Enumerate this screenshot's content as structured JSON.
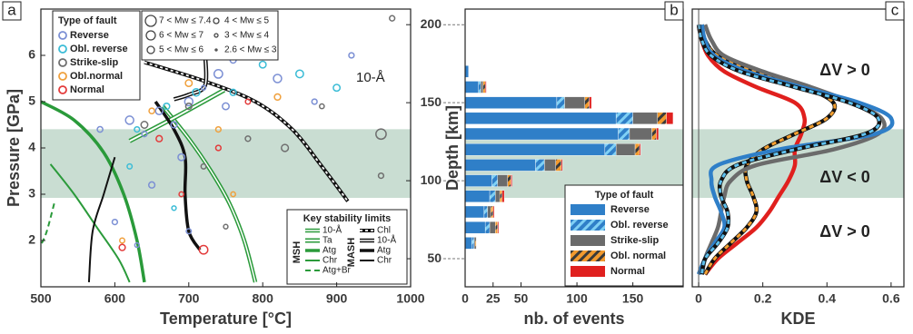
{
  "chart_data": [
    {
      "type": "scatter",
      "label": "a",
      "xlabel": "Temperature [°C]",
      "ylabel": "Pressure [GPa]",
      "y2label": "Depth [km]",
      "xlim": [
        500,
        1000
      ],
      "ylim": [
        1,
        7
      ],
      "y2lim": [
        32,
        210
      ],
      "xticks": [
        500,
        600,
        700,
        800,
        900,
        1000
      ],
      "yticks": [
        2,
        3,
        4,
        5,
        6
      ],
      "y2ticks": [
        50,
        100,
        150,
        200
      ],
      "shade": [
        89,
        133
      ],
      "legend_title": "Type of fault",
      "series": [
        {
          "name": "Reverse",
          "color": "#7b8fd4",
          "x": [
            620,
            640,
            660,
            680,
            700,
            720,
            740,
            600,
            650,
            690,
            760,
            820,
            870,
            920,
            580,
            700,
            630,
            750
          ],
          "values": [
            4.6,
            4.3,
            4.8,
            4.5,
            5.0,
            5.3,
            5.6,
            2.4,
            3.2,
            3.8,
            5.9,
            5.5,
            5.0,
            6.0,
            4.4,
            2.2,
            1.9,
            4.9
          ],
          "mw": [
            4.5,
            3.5,
            4.2,
            3.8,
            4.5,
            3.2,
            4.6,
            3.5,
            3.8,
            4.0,
            3.8,
            4.5,
            3.5,
            3.5,
            3.6,
            3.4,
            3.2,
            4.0
          ]
        },
        {
          "name": "Obl. reverse",
          "color": "#3bbcd6",
          "x": [
            630,
            670,
            710,
            760,
            800,
            850,
            620,
            680,
            900
          ],
          "values": [
            4.4,
            4.9,
            5.2,
            5.2,
            5.8,
            5.6,
            3.6,
            2.7,
            5.3
          ],
          "mw": [
            3.5,
            3.8,
            4.2,
            3.8,
            4.0,
            4.3,
            3.4,
            3.2,
            4.0
          ]
        },
        {
          "name": "Strike-slip",
          "color": "#6f6f6f",
          "x": [
            640,
            700,
            780,
            830,
            880,
            960,
            975,
            960,
            720,
            750
          ],
          "values": [
            4.5,
            4.9,
            4.2,
            4.0,
            4.9,
            3.4,
            6.8,
            4.3,
            3.6,
            2.3
          ],
          "mw": [
            4.0,
            3.8,
            3.5,
            4.1,
            3.3,
            3.5,
            3.5,
            5.2,
            3.4,
            3.2
          ]
        },
        {
          "name": "Obl.normal",
          "color": "#f0a03c",
          "x": [
            650,
            700,
            740,
            820,
            610,
            760
          ],
          "values": [
            4.8,
            5.4,
            4.4,
            5.1,
            2.0,
            3.0
          ],
          "mw": [
            3.6,
            4.0,
            3.5,
            3.8,
            3.4,
            3.3
          ]
        },
        {
          "name": "Normal",
          "color": "#e33b3b",
          "x": [
            660,
            720,
            610,
            690,
            740,
            780
          ],
          "values": [
            4.2,
            1.8,
            1.85,
            3.0,
            4.0,
            5.0
          ],
          "mw": [
            3.8,
            4.6,
            3.8,
            3.3,
            3.5,
            3.4
          ]
        }
      ],
      "magnitude_legend": [
        "7 < Mw ≤ 7.4",
        "6 < Mw ≤ 7",
        "5 < Mw ≤ 6",
        "4 < Mw ≤ 5",
        "3 < Mw ≤ 4",
        "2.6 < Mw ≤ 3"
      ],
      "key": {
        "title": "Key stability limits",
        "groups": [
          {
            "name": "MSH",
            "color": "#2a9a3a",
            "items": [
              {
                "label": "10-Å",
                "style": "double"
              },
              {
                "label": "Ta",
                "style": "pair"
              },
              {
                "label": "Atg",
                "style": "thick"
              },
              {
                "label": "Chr",
                "style": "thin"
              },
              {
                "label": "Atg+Br",
                "style": "dashed"
              }
            ]
          },
          {
            "name": "MASH",
            "color": "#111111",
            "items": [
              {
                "label": "Chl",
                "style": "dotted"
              },
              {
                "label": "10-Å",
                "style": "double"
              },
              {
                "label": "Atg",
                "style": "thick"
              },
              {
                "label": "Chr",
                "style": "thin"
              }
            ]
          }
        ]
      },
      "curves": [
        {
          "group": 0,
          "item": 0,
          "x": [
            665,
            700,
            730,
            755,
            775,
            790
          ],
          "values": [
            4.9,
            4.2,
            3.5,
            2.8,
            2.0,
            1.1
          ]
        },
        {
          "group": 0,
          "item": 1,
          "x": [
            620,
            680,
            748
          ],
          "values": [
            4.15,
            4.65,
            5.25
          ]
        },
        {
          "group": 0,
          "item": 2,
          "x": [
            500,
            545,
            585,
            612,
            630,
            640
          ],
          "values": [
            5.0,
            4.6,
            3.9,
            3.0,
            2.0,
            1.1
          ]
        },
        {
          "group": 0,
          "item": 3,
          "x": [
            513,
            545,
            575,
            605,
            620
          ],
          "values": [
            3.65,
            3.0,
            2.3,
            1.6,
            1.1
          ]
        },
        {
          "group": 0,
          "item": 4,
          "x": [
            518,
            508,
            500
          ],
          "values": [
            2.8,
            2.2,
            1.9
          ]
        },
        {
          "group": 1,
          "item": 0,
          "x": [
            640,
            720,
            790,
            840,
            880,
            915
          ],
          "values": [
            5.85,
            5.45,
            5.0,
            4.4,
            3.6,
            2.85
          ]
        },
        {
          "group": 1,
          "item": 1,
          "x": [
            722,
            722,
            700,
            680
          ],
          "values": [
            6.05,
            5.35,
            5.15,
            5.05
          ]
        },
        {
          "group": 1,
          "item": 2,
          "x": [
            655,
            680,
            695,
            695,
            700,
            715
          ],
          "values": [
            5.0,
            4.4,
            3.8,
            3.0,
            2.2,
            1.8
          ]
        },
        {
          "group": 1,
          "item": 3,
          "x": [
            600,
            585,
            570,
            565
          ],
          "values": [
            3.8,
            3.0,
            2.2,
            1.1
          ]
        }
      ],
      "annotations": [
        {
          "text": "10-Å",
          "color": "#2a9a3a"
        }
      ]
    },
    {
      "type": "bar",
      "label": "b",
      "orientation": "horizontal",
      "stacked": true,
      "xlabel": "nb. of events",
      "y": [
        170,
        160,
        150,
        140,
        130,
        120,
        110,
        100,
        90,
        80,
        70,
        60
      ],
      "ylim": [
        32,
        210
      ],
      "xlim": [
        0,
        195
      ],
      "xticks": [
        0,
        25,
        50,
        100,
        150
      ],
      "shade": [
        89,
        133
      ],
      "legend_title": "Type of fault",
      "series": [
        {
          "name": "Reverse",
          "color": "#2f7fc8",
          "values": [
            3,
            12,
            82,
            135,
            137,
            125,
            63,
            24,
            22,
            17,
            18,
            6
          ]
        },
        {
          "name": "Obl. reverse",
          "color": "#2f7fc8",
          "hatch_color": "#7fd0f5",
          "values": [
            0,
            2,
            7,
            15,
            10,
            10,
            8,
            5,
            5,
            3,
            4,
            2
          ]
        },
        {
          "name": "Strike-slip",
          "color": "#6b6b6b",
          "values": [
            0,
            2,
            18,
            22,
            20,
            17,
            10,
            9,
            4,
            3,
            5,
            1
          ]
        },
        {
          "name": "Obl. normal",
          "color": "#f29a2e",
          "hatch_color": "#3a3a3a",
          "values": [
            0,
            2,
            4,
            8,
            4,
            4,
            5,
            3,
            2,
            2,
            2,
            1
          ]
        },
        {
          "name": "Normal",
          "color": "#e0201e",
          "values": [
            0,
            1,
            2,
            6,
            2,
            1,
            1,
            1,
            2,
            1,
            1,
            0
          ]
        }
      ]
    },
    {
      "type": "line",
      "label": "c",
      "xlabel": "KDE",
      "y": [
        200,
        190,
        180,
        170,
        160,
        150,
        140,
        130,
        120,
        110,
        100,
        90,
        80,
        70,
        60,
        50,
        40
      ],
      "ylim": [
        32,
        210
      ],
      "xlim": [
        -0.02,
        0.64
      ],
      "xticks": [
        0,
        0.2,
        0.4,
        0.6
      ],
      "shade": [
        89,
        133
      ],
      "series": [
        {
          "color": "#e0201e",
          "values": [
            0.0,
            0.01,
            0.03,
            0.08,
            0.18,
            0.3,
            0.33,
            0.32,
            0.3,
            0.3,
            0.28,
            0.25,
            0.22,
            0.18,
            0.12,
            0.06,
            0.02
          ]
        },
        {
          "color": "#111111",
          "dash_color": "#f5a030",
          "values": [
            0.01,
            0.02,
            0.06,
            0.17,
            0.33,
            0.42,
            0.4,
            0.3,
            0.2,
            0.15,
            0.15,
            0.17,
            0.18,
            0.15,
            0.1,
            0.05,
            0.02
          ]
        },
        {
          "color": "#6b6b6b",
          "values": [
            0.02,
            0.04,
            0.08,
            0.2,
            0.35,
            0.48,
            0.57,
            0.56,
            0.42,
            0.18,
            0.1,
            0.08,
            0.07,
            0.06,
            0.04,
            0.02,
            0.01
          ]
        },
        {
          "color": "#2f7fc8",
          "values": [
            0.01,
            0.02,
            0.05,
            0.15,
            0.32,
            0.5,
            0.6,
            0.55,
            0.25,
            0.06,
            0.04,
            0.05,
            0.07,
            0.08,
            0.05,
            0.02,
            0.0
          ]
        },
        {
          "color": "#111111",
          "dash_color": "#5ec0ee",
          "values": [
            0.0,
            0.01,
            0.04,
            0.13,
            0.3,
            0.47,
            0.56,
            0.52,
            0.3,
            0.12,
            0.07,
            0.07,
            0.09,
            0.09,
            0.06,
            0.02,
            0.01
          ]
        }
      ],
      "annotations": [
        {
          "text": "ΔV > 0",
          "color": "#5a5a5a"
        },
        {
          "text": "ΔV < 0",
          "color": "#2a7a3a"
        },
        {
          "text": "ΔV > 0",
          "color": "#2a7a3a"
        }
      ]
    }
  ]
}
